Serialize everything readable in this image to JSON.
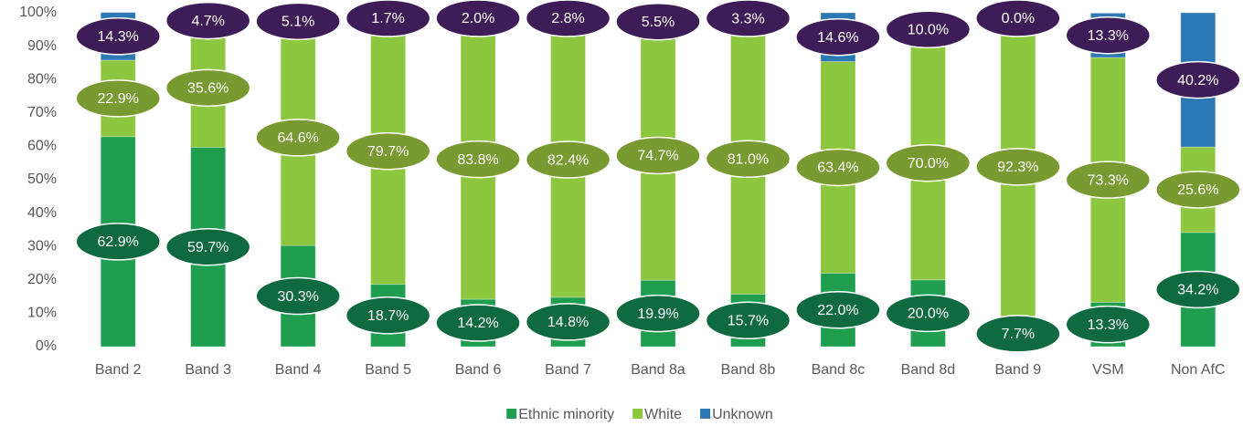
{
  "chart_data": {
    "type": "stacked_bar",
    "categories": [
      "Band 2",
      "Band 3",
      "Band 4",
      "Band 5",
      "Band 6",
      "Band 7",
      "Band 8a",
      "Band 8b",
      "Band 8c",
      "Band 8d",
      "Band 9",
      "VSM",
      "Non AfC"
    ],
    "series": [
      {
        "name": "Ethnic minority",
        "color": "#1e9e4e",
        "label_color": "#0f6a40",
        "values": [
          62.9,
          59.7,
          30.3,
          18.7,
          14.2,
          14.8,
          19.9,
          15.7,
          22.0,
          20.0,
          7.7,
          13.3,
          34.2
        ],
        "value_labels": [
          "62.9%",
          "59.7%",
          "30.3%",
          "18.7%",
          "14.2%",
          "14.8%",
          "19.9%",
          "15.7%",
          "22.0%",
          "20.0%",
          "7.7%",
          "13.3%",
          "34.2%"
        ]
      },
      {
        "name": "White",
        "color": "#8dc63f",
        "label_color": "#789a30",
        "values": [
          22.9,
          35.6,
          64.6,
          79.7,
          83.8,
          82.4,
          74.7,
          81.0,
          63.4,
          70.0,
          92.3,
          73.3,
          25.6
        ],
        "value_labels": [
          "22.9%",
          "35.6%",
          "64.6%",
          "79.7%",
          "83.8%",
          "82.4%",
          "74.7%",
          "81.0%",
          "63.4%",
          "70.0%",
          "92.3%",
          "73.3%",
          "25.6%"
        ]
      },
      {
        "name": "Unknown",
        "color": "#2b78b5",
        "label_color": "#3d1c57",
        "values": [
          14.3,
          4.7,
          5.1,
          1.7,
          2.0,
          2.8,
          5.5,
          3.3,
          14.6,
          10.0,
          0.0,
          13.3,
          40.2
        ],
        "value_labels": [
          "14.3%",
          "4.7%",
          "5.1%",
          "1.7%",
          "2.0%",
          "2.8%",
          "5.5%",
          "3.3%",
          "14.6%",
          "10.0%",
          "0.0%",
          "13.3%",
          "40.2%"
        ]
      }
    ],
    "ylim": [
      0,
      100
    ],
    "yticks": [
      {
        "value": 0,
        "label": "0%"
      },
      {
        "value": 10,
        "label": "10%"
      },
      {
        "value": 20,
        "label": "20%"
      },
      {
        "value": 30,
        "label": "30%"
      },
      {
        "value": 40,
        "label": "40%"
      },
      {
        "value": 50,
        "label": "50%"
      },
      {
        "value": 60,
        "label": "60%"
      },
      {
        "value": 70,
        "label": "70%"
      },
      {
        "value": 80,
        "label": "80%"
      },
      {
        "value": 90,
        "label": "90%"
      },
      {
        "value": 100,
        "label": "100%"
      }
    ],
    "legend": "bottom"
  }
}
